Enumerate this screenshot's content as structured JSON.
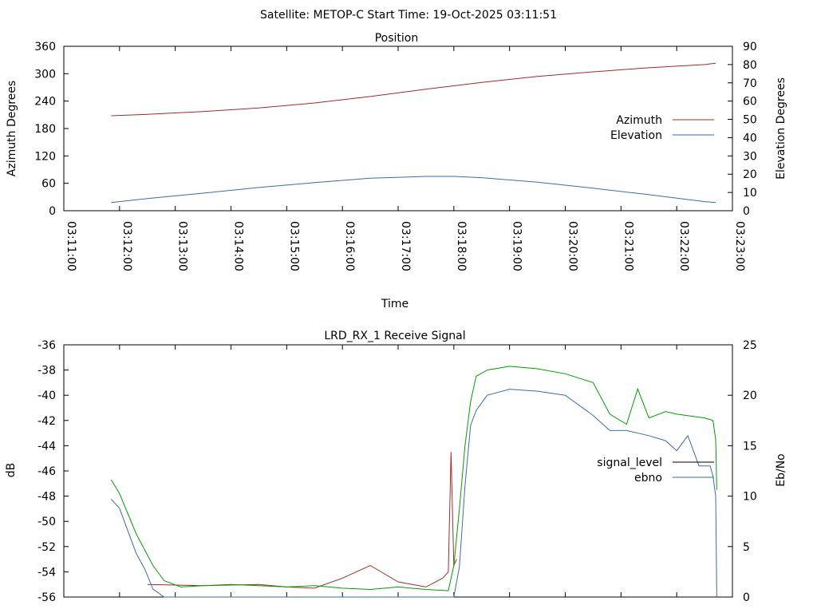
{
  "header": {
    "title": "Satellite: METOP-C    Start Time: 19-Oct-2025 03:11:51"
  },
  "colors": {
    "red": "#a52a2a",
    "blue": "#3a6ea5",
    "green": "#00a000",
    "black": "#000000"
  },
  "chart_data": [
    {
      "type": "line",
      "title": "Position",
      "xlabel": "Time",
      "ylabel": "Azimuth Degrees",
      "y2label": "Elevation Degrees",
      "xlim_minutes": [
        0,
        12
      ],
      "xticks": [
        "03:11:00",
        "03:12:00",
        "03:13:00",
        "03:14:00",
        "03:15:00",
        "03:16:00",
        "03:17:00",
        "03:18:00",
        "03:19:00",
        "03:20:00",
        "03:21:00",
        "03:22:00",
        "03:23:00"
      ],
      "ylim": [
        0,
        360
      ],
      "yticks": [
        "0",
        "60",
        "120",
        "180",
        "240",
        "300",
        "360"
      ],
      "y2lim": [
        0,
        90
      ],
      "y2ticks": [
        "0",
        "10",
        "20",
        "30",
        "40",
        "50",
        "60",
        "70",
        "80",
        "90"
      ],
      "legend_position": "right",
      "series": [
        {
          "name": "Azimuth",
          "axis": "y",
          "color": "#a52a2a",
          "x": [
            0.85,
            1.5,
            2.5,
            3.5,
            4.5,
            5.5,
            6.5,
            7.5,
            8.5,
            9.5,
            10.5,
            11.5,
            11.7
          ],
          "y": [
            208,
            211,
            217,
            225,
            236,
            250,
            266,
            281,
            294,
            304,
            313,
            320,
            323
          ]
        },
        {
          "name": "Elevation",
          "axis": "y2",
          "color": "#3a6ea5",
          "x": [
            0.85,
            1.5,
            2.5,
            3.5,
            4.5,
            5.5,
            6.5,
            7.0,
            7.5,
            8.5,
            9.5,
            10.5,
            11.5,
            11.7
          ],
          "y": [
            4.5,
            6.7,
            9.6,
            12.7,
            15.4,
            17.8,
            18.8,
            18.8,
            18.1,
            15.6,
            12.3,
            8.8,
            5.0,
            4.5
          ]
        }
      ]
    },
    {
      "type": "line",
      "title": "LRD_RX_1 Receive Signal",
      "ylabel": "dB",
      "y2label": "Eb/No",
      "xlim_minutes": [
        0,
        12
      ],
      "ylim": [
        -56,
        -36
      ],
      "yticks": [
        "-56",
        "-54",
        "-52",
        "-50",
        "-48",
        "-46",
        "-44",
        "-42",
        "-40",
        "-38",
        "-36"
      ],
      "y2lim": [
        0,
        25
      ],
      "y2ticks": [
        "0",
        "5",
        "10",
        "15",
        "20",
        "25"
      ],
      "legend_position": "right",
      "legend": [
        {
          "name": "signal_level",
          "color": "#000000"
        },
        {
          "name": "ebno",
          "color": "#3a6ea5"
        }
      ],
      "series": [
        {
          "name": "",
          "axis": "y",
          "color": "#a52a2a",
          "x": [
            1.5,
            2.5,
            3.5,
            4.0,
            4.5,
            5.0,
            5.5,
            6.0,
            6.5,
            6.8,
            6.9,
            6.95,
            7.0,
            7.05
          ],
          "y": [
            -55,
            -55.1,
            -55,
            -55.2,
            -55.3,
            -54.5,
            -53.5,
            -54.8,
            -55.2,
            -54.5,
            -54.0,
            -44.5,
            -53.5,
            -53.0
          ]
        },
        {
          "name": "",
          "axis": "y",
          "color": "#00a000",
          "x": [
            0.85,
            1.0,
            1.3,
            1.6,
            1.8,
            2.1,
            2.5,
            3.0,
            3.5,
            4.0,
            4.5,
            5.0,
            5.5,
            6.0,
            6.5,
            6.9,
            7.0,
            7.1,
            7.2,
            7.3,
            7.4,
            7.6,
            8.0,
            8.5,
            9.0,
            9.5,
            9.8,
            10.1,
            10.3,
            10.5,
            10.8,
            11.0,
            11.5,
            11.65,
            11.7,
            11.72
          ],
          "y": [
            -46.7,
            -47.8,
            -51,
            -53.5,
            -54.7,
            -55.2,
            -55.1,
            -55.0,
            -55.1,
            -55.2,
            -55.1,
            -55.3,
            -55.4,
            -55.2,
            -55.4,
            -55.5,
            -53.5,
            -49,
            -44,
            -40.5,
            -38.5,
            -38.0,
            -37.7,
            -37.9,
            -38.3,
            -39.0,
            -41.5,
            -42.3,
            -39.5,
            -41.8,
            -41.3,
            -41.5,
            -41.8,
            -42.0,
            -43.5,
            -47.5
          ]
        },
        {
          "name": "",
          "axis": "y2",
          "color": "#3a6ea5",
          "x": [
            0.85,
            1.0,
            1.3,
            1.45,
            1.6,
            1.8,
            7.0,
            7.1,
            7.2,
            7.3,
            7.4,
            7.6,
            8.0,
            8.5,
            9.0,
            9.5,
            9.8,
            10.1,
            10.5,
            10.8,
            11.0,
            11.2,
            11.4,
            11.6,
            11.65,
            11.7,
            11.72
          ],
          "y": [
            9.7,
            8.8,
            4.3,
            2.8,
            0.8,
            0.0,
            0.0,
            3.0,
            11.0,
            17.0,
            18.5,
            20.0,
            20.6,
            20.4,
            20.0,
            18.0,
            16.5,
            16.5,
            16.0,
            15.5,
            14.5,
            16.0,
            13.0,
            13.0,
            12.0,
            10.0,
            0.0
          ]
        }
      ]
    }
  ]
}
